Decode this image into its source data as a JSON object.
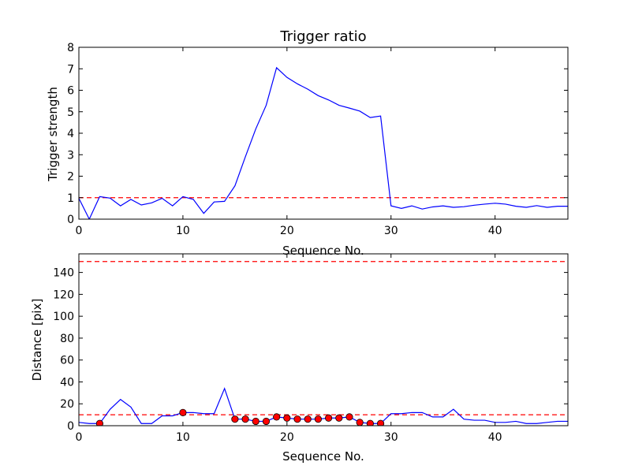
{
  "chart_data": [
    {
      "type": "line",
      "title": "Trigger ratio",
      "xlabel": "Sequence No.",
      "ylabel": "Trigger strength",
      "xlim": [
        0,
        47
      ],
      "ylim": [
        0,
        8
      ],
      "xticks": [
        0,
        10,
        20,
        30,
        40
      ],
      "yticks": [
        0,
        1,
        2,
        3,
        4,
        5,
        6,
        7,
        8
      ],
      "grid": false,
      "series": [
        {
          "style": "line",
          "color": "#0000ff",
          "x": [
            0,
            1,
            2,
            3,
            4,
            5,
            6,
            7,
            8,
            9,
            10,
            11,
            12,
            13,
            14,
            15,
            16,
            17,
            18,
            19,
            20,
            21,
            22,
            23,
            24,
            25,
            26,
            27,
            28,
            29,
            30,
            31,
            32,
            33,
            34,
            35,
            36,
            37,
            38,
            39,
            40,
            41,
            42,
            43,
            44,
            45,
            46,
            47
          ],
          "y": [
            0.97,
            0.0,
            1.05,
            0.98,
            0.62,
            0.92,
            0.66,
            0.76,
            0.97,
            0.62,
            1.05,
            0.92,
            0.27,
            0.8,
            0.83,
            1.55,
            2.9,
            4.2,
            5.3,
            7.05,
            6.6,
            6.3,
            6.05,
            5.75,
            5.55,
            5.3,
            5.17,
            5.03,
            4.73,
            4.8,
            0.62,
            0.5,
            0.62,
            0.47,
            0.57,
            0.62,
            0.55,
            0.58,
            0.65,
            0.7,
            0.74,
            0.7,
            0.6,
            0.55,
            0.63,
            0.55,
            0.6,
            0.6
          ]
        }
      ],
      "reference_lines": [
        {
          "axis": "y",
          "value": 1,
          "color": "#ff0000",
          "style": "dashed"
        }
      ]
    },
    {
      "type": "line",
      "title": "",
      "xlabel": "Sequence No.",
      "ylabel": "Distance [pix]",
      "xlim": [
        0,
        47
      ],
      "ylim": [
        0,
        157
      ],
      "xticks": [
        0,
        10,
        20,
        30,
        40
      ],
      "yticks": [
        0,
        20,
        40,
        60,
        80,
        100,
        120,
        140
      ],
      "grid": false,
      "series": [
        {
          "style": "line",
          "color": "#0000ff",
          "x": [
            0,
            1,
            2,
            3,
            4,
            5,
            6,
            7,
            8,
            9,
            10,
            11,
            12,
            13,
            14,
            15,
            16,
            17,
            18,
            19,
            20,
            21,
            22,
            23,
            24,
            25,
            26,
            27,
            28,
            29,
            30,
            31,
            32,
            33,
            34,
            35,
            36,
            37,
            38,
            39,
            40,
            41,
            42,
            43,
            44,
            45,
            46,
            47
          ],
          "y": [
            3,
            2,
            2,
            15,
            24,
            17,
            2,
            2,
            9,
            9,
            12,
            12,
            11,
            11,
            34,
            6,
            6,
            4,
            4,
            8,
            7,
            6,
            6,
            6,
            7,
            7,
            8,
            3,
            2,
            2,
            11,
            11,
            12,
            12,
            8,
            8,
            15,
            6,
            5,
            5,
            3,
            3,
            4,
            2,
            2,
            3,
            4,
            4
          ]
        },
        {
          "style": "markers",
          "color": "#ff0000",
          "x": [
            2,
            10,
            15,
            16,
            17,
            18,
            19,
            20,
            21,
            22,
            23,
            24,
            25,
            26,
            27,
            28,
            29
          ],
          "y": [
            2,
            12,
            6,
            6,
            4,
            4,
            8,
            7,
            6,
            6,
            6,
            7,
            7,
            8,
            3,
            2,
            2
          ]
        }
      ],
      "reference_lines": [
        {
          "axis": "y",
          "value": 150,
          "color": "#ff0000",
          "style": "dashed"
        },
        {
          "axis": "y",
          "value": 10,
          "color": "#ff0000",
          "style": "dashed"
        }
      ]
    }
  ]
}
